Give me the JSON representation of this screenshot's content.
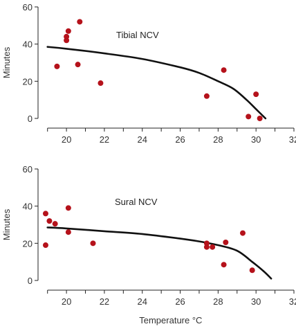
{
  "chart_data": [
    {
      "type": "scatter",
      "title": "Tibial NCV",
      "xlabel": "",
      "ylabel": "Minutes",
      "xlim": [
        18.5,
        32
      ],
      "ylim": [
        -3,
        60
      ],
      "xticks": [
        20,
        22,
        24,
        26,
        28,
        30,
        32
      ],
      "yticks": [
        0,
        20,
        40,
        60
      ],
      "points": [
        {
          "x": 19.5,
          "y": 28
        },
        {
          "x": 20.0,
          "y": 44
        },
        {
          "x": 20.0,
          "y": 42
        },
        {
          "x": 20.1,
          "y": 47
        },
        {
          "x": 20.6,
          "y": 29
        },
        {
          "x": 20.7,
          "y": 52
        },
        {
          "x": 21.8,
          "y": 19
        },
        {
          "x": 27.4,
          "y": 12
        },
        {
          "x": 28.3,
          "y": 26
        },
        {
          "x": 29.6,
          "y": 1
        },
        {
          "x": 30.0,
          "y": 13
        },
        {
          "x": 30.2,
          "y": 0
        }
      ],
      "curve": [
        {
          "x": 19.0,
          "y": 38.5
        },
        {
          "x": 20.0,
          "y": 37.5
        },
        {
          "x": 22.0,
          "y": 35.0
        },
        {
          "x": 24.0,
          "y": 32.0
        },
        {
          "x": 26.0,
          "y": 27.5
        },
        {
          "x": 27.0,
          "y": 24.5
        },
        {
          "x": 28.0,
          "y": 20.0
        },
        {
          "x": 28.8,
          "y": 16.0
        },
        {
          "x": 29.5,
          "y": 10.0
        },
        {
          "x": 30.0,
          "y": 5.0
        },
        {
          "x": 30.5,
          "y": 0.0
        }
      ]
    },
    {
      "type": "scatter",
      "title": "Sural NCV",
      "xlabel": "Temperature °C",
      "ylabel": "Minutes",
      "xlim": [
        18.5,
        32
      ],
      "ylim": [
        -3,
        60
      ],
      "xticks": [
        20,
        22,
        24,
        26,
        28,
        30,
        32
      ],
      "yticks": [
        0,
        20,
        40,
        60
      ],
      "points": [
        {
          "x": 18.9,
          "y": 36
        },
        {
          "x": 19.1,
          "y": 32
        },
        {
          "x": 19.4,
          "y": 30.5
        },
        {
          "x": 18.9,
          "y": 19
        },
        {
          "x": 20.1,
          "y": 39
        },
        {
          "x": 20.1,
          "y": 26
        },
        {
          "x": 21.4,
          "y": 20
        },
        {
          "x": 27.4,
          "y": 20
        },
        {
          "x": 27.4,
          "y": 18
        },
        {
          "x": 27.7,
          "y": 18
        },
        {
          "x": 28.3,
          "y": 8.5
        },
        {
          "x": 28.4,
          "y": 20.5
        },
        {
          "x": 29.3,
          "y": 25.5
        },
        {
          "x": 29.8,
          "y": 5.5
        }
      ],
      "curve": [
        {
          "x": 19.0,
          "y": 28.5
        },
        {
          "x": 20.0,
          "y": 28.0
        },
        {
          "x": 22.0,
          "y": 26.5
        },
        {
          "x": 24.0,
          "y": 25.0
        },
        {
          "x": 26.0,
          "y": 22.5
        },
        {
          "x": 27.0,
          "y": 21.0
        },
        {
          "x": 28.0,
          "y": 19.0
        },
        {
          "x": 29.0,
          "y": 16.0
        },
        {
          "x": 29.8,
          "y": 10.0
        },
        {
          "x": 30.4,
          "y": 5.0
        },
        {
          "x": 30.8,
          "y": 1.0
        }
      ]
    }
  ],
  "colors": {
    "points": "#b5121b",
    "curve": "#111111",
    "axes": "#222222"
  }
}
